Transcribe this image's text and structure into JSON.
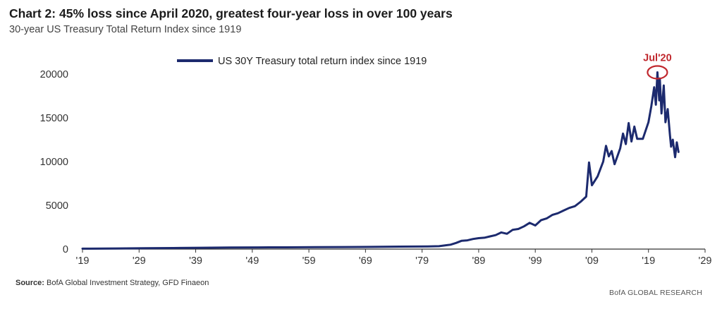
{
  "header": {
    "title": "Chart 2: 45% loss since April 2020, greatest four-year loss in over 100 years",
    "subtitle": "30-year US Treasury Total Return Index since 1919"
  },
  "footer": {
    "source_label": "Source:",
    "source_text": " BofA Global Investment Strategy, GFD Finaeon",
    "brand": "BofA GLOBAL RESEARCH"
  },
  "chart_data": {
    "type": "line",
    "title": "Chart 2: 45% loss since April 2020, greatest four-year loss in over 100 years",
    "subtitle": "30-year US Treasury Total Return Index since 1919",
    "xlabel": "",
    "ylabel": "",
    "xlim": [
      1919,
      2029
    ],
    "ylim": [
      0,
      20000
    ],
    "grid": false,
    "legend_position": "top-center",
    "x_ticks": [
      1919,
      1929,
      1939,
      1949,
      1959,
      1969,
      1979,
      1989,
      1999,
      2009,
      2019,
      2029
    ],
    "x_tick_labels": [
      "'19",
      "'29",
      "'39",
      "'49",
      "'59",
      "'69",
      "'79",
      "'89",
      "'99",
      "'09",
      "'19",
      "'29"
    ],
    "y_ticks": [
      0,
      5000,
      10000,
      15000,
      20000
    ],
    "y_tick_labels": [
      "0",
      "5000",
      "10000",
      "15000",
      "20000"
    ],
    "series": [
      {
        "name": "US 30Y Treasury total return index since 1919",
        "color": "#1c2a6e",
        "x": [
          1919,
          1925,
          1930,
          1935,
          1940,
          1945,
          1950,
          1955,
          1960,
          1965,
          1970,
          1975,
          1980,
          1982,
          1984,
          1985,
          1986,
          1987,
          1988,
          1989,
          1990,
          1991,
          1992,
          1993,
          1994,
          1995,
          1996,
          1997,
          1998,
          1999,
          2000,
          2001,
          2002,
          2003,
          2004,
          2005,
          2006,
          2007,
          2008,
          2008.5,
          2009,
          2010,
          2011,
          2011.5,
          2012,
          2012.5,
          2013,
          2014,
          2014.5,
          2015,
          2015.5,
          2016,
          2016.5,
          2017,
          2018,
          2019,
          2019.5,
          2020,
          2020.3,
          2020.58,
          2020.9,
          2021,
          2021.3,
          2021.7,
          2022,
          2022.4,
          2022.8,
          2023,
          2023.3,
          2023.7,
          2024,
          2024.3
        ],
        "values": [
          50,
          70,
          95,
          120,
          150,
          180,
          190,
          200,
          220,
          230,
          250,
          280,
          300,
          330,
          500,
          700,
          950,
          1000,
          1150,
          1250,
          1300,
          1450,
          1600,
          1900,
          1750,
          2200,
          2300,
          2600,
          3000,
          2700,
          3300,
          3500,
          3900,
          4100,
          4400,
          4700,
          4900,
          5400,
          6000,
          9900,
          7300,
          8300,
          10000,
          11800,
          10600,
          11200,
          9700,
          11500,
          13200,
          12000,
          14400,
          12300,
          14000,
          12600,
          12600,
          14500,
          16300,
          18500,
          16500,
          20200,
          17000,
          19500,
          15500,
          18700,
          14500,
          16000,
          13000,
          11700,
          12500,
          10500,
          12200,
          11100
        ]
      }
    ],
    "annotations": [
      {
        "text": "Jul'20",
        "x": 2020.58,
        "y": 20200,
        "color": "#c0272d",
        "marker": "circle"
      }
    ]
  }
}
